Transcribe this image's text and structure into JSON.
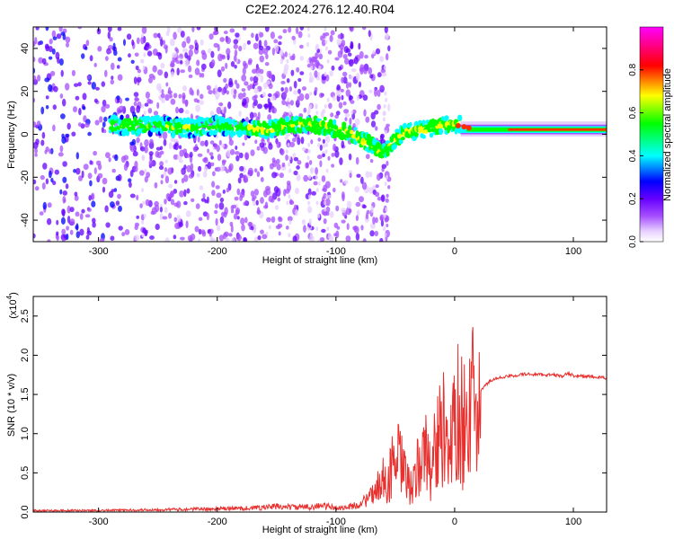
{
  "chart_data": [
    {
      "type": "heatmap",
      "title": "C2E2.2024.276.12.40.R04",
      "xlabel": "Height of straight line (km)",
      "ylabel": "Frequency (Hz)",
      "xlim": [
        -355,
        128
      ],
      "ylim": [
        -50,
        50
      ],
      "x_ticks": [
        -300,
        -200,
        -100,
        0,
        100
      ],
      "y_ticks": [
        -40,
        -20,
        0,
        20,
        40
      ],
      "colorbar": {
        "label": "Normalized spectral amplitude",
        "range": [
          0,
          1
        ],
        "ticks": [
          "0.0",
          "0.2",
          "0.4",
          "0.6",
          "0.8"
        ],
        "colors": [
          "#ffffff",
          "#e6cfff",
          "#a64dff",
          "#6600ff",
          "#0000ff",
          "#00ffff",
          "#00ff00",
          "#ffff00",
          "#ff0000",
          "#ff00ff"
        ]
      },
      "ridge": {
        "x": [
          -280,
          -250,
          -220,
          -200,
          -180,
          -160,
          -140,
          -120,
          -110,
          -100,
          -90,
          -80,
          -70,
          -60,
          -50,
          -40,
          -30,
          -20,
          -10,
          0,
          10,
          20,
          40,
          60,
          80,
          100,
          128
        ],
        "freq": [
          4,
          4,
          3,
          4,
          3,
          2,
          4,
          5,
          4,
          2,
          1,
          -2,
          -5,
          -9,
          -2,
          1,
          2,
          3,
          4,
          5,
          4,
          3,
          2,
          2,
          2,
          2,
          2
        ]
      }
    },
    {
      "type": "line",
      "xlabel": "Height of straight line (km)",
      "ylabel": "SNR (10 * v/v)",
      "y_multiplier": "(x10",
      "y_multiplier_exp": "4",
      "xlim": [
        -355,
        128
      ],
      "ylim": [
        0,
        2.75
      ],
      "x_ticks": [
        -300,
        -200,
        -100,
        0,
        100
      ],
      "y_ticks": [
        "0.0",
        "0.5",
        "1.0",
        "1.5",
        "2.0",
        "2.5"
      ],
      "series": [
        {
          "name": "SNR",
          "color": "#e8302e",
          "x": [
            -355,
            -300,
            -250,
            -200,
            -175,
            -160,
            -150,
            -130,
            -110,
            -100,
            -90,
            -80,
            -70,
            -60,
            -55,
            -50,
            -45,
            -40,
            -35,
            -30,
            -25,
            -20,
            -15,
            -10,
            -5,
            0,
            5,
            10,
            15,
            20,
            22,
            30,
            40,
            60,
            80,
            90,
            91,
            95,
            100,
            110,
            128
          ],
          "y": [
            0.02,
            0.02,
            0.03,
            0.04,
            0.05,
            0.06,
            0.07,
            0.06,
            0.08,
            0.05,
            0.06,
            0.1,
            0.2,
            0.45,
            0.7,
            1.0,
            0.9,
            0.55,
            0.45,
            0.95,
            1.1,
            0.9,
            1.3,
            1.6,
            0.8,
            2.0,
            1.7,
            1.8,
            2.0,
            1.8,
            1.55,
            1.68,
            1.72,
            1.76,
            1.75,
            1.74,
            1.72,
            1.77,
            1.74,
            1.73,
            1.71
          ]
        }
      ]
    }
  ]
}
